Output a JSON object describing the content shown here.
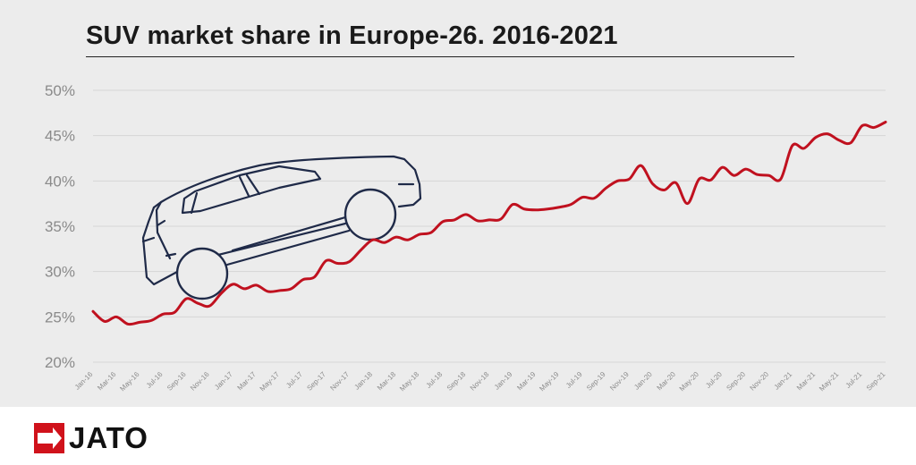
{
  "chart_data": {
    "type": "line",
    "title": "SUV market share in Europe-26. 2016-2021",
    "xlabel": "",
    "ylabel": "",
    "ylim": [
      20,
      50
    ],
    "yticks": [
      "50%",
      "45%",
      "40%",
      "35%",
      "30%",
      "25%",
      "20%"
    ],
    "x_tick_labels": [
      "Jan-16",
      "Mar-16",
      "May-16",
      "Jul-16",
      "Sep-16",
      "Nov-16",
      "Jan-17",
      "Mar-17",
      "May-17",
      "Jul-17",
      "Sep-17",
      "Nov-17",
      "Jan-18",
      "Mar-18",
      "May-18",
      "Jul-18",
      "Sep-18",
      "Nov-18",
      "Jan-19",
      "Mar-19",
      "May-19",
      "Jul-19",
      "Sep-19",
      "Nov-19",
      "Jan-20",
      "Mar-20",
      "May-20",
      "Jul-20",
      "Sep-20",
      "Nov-20",
      "Jan-21",
      "Mar-21",
      "May-21",
      "Jul-21",
      "Sep-21"
    ],
    "grid": true,
    "series": [
      {
        "color": "#c0111f",
        "x": [
          "Jan-16",
          "Feb-16",
          "Mar-16",
          "Apr-16",
          "May-16",
          "Jun-16",
          "Jul-16",
          "Aug-16",
          "Sep-16",
          "Oct-16",
          "Nov-16",
          "Dec-16",
          "Jan-17",
          "Feb-17",
          "Mar-17",
          "Apr-17",
          "May-17",
          "Jun-17",
          "Jul-17",
          "Aug-17",
          "Sep-17",
          "Oct-17",
          "Nov-17",
          "Dec-17",
          "Jan-18",
          "Feb-18",
          "Mar-18",
          "Apr-18",
          "May-18",
          "Jun-18",
          "Jul-18",
          "Aug-18",
          "Sep-18",
          "Oct-18",
          "Nov-18",
          "Dec-18",
          "Jan-19",
          "Feb-19",
          "Mar-19",
          "Apr-19",
          "May-19",
          "Jun-19",
          "Jul-19",
          "Aug-19",
          "Sep-19",
          "Oct-19",
          "Nov-19",
          "Dec-19",
          "Jan-20",
          "Feb-20",
          "Mar-20",
          "Apr-20",
          "May-20",
          "Jun-20",
          "Jul-20",
          "Aug-20",
          "Sep-20",
          "Oct-20",
          "Nov-20",
          "Dec-20",
          "Jan-21",
          "Feb-21",
          "Mar-21",
          "Apr-21",
          "May-21",
          "Jun-21",
          "Jul-21",
          "Aug-21",
          "Sep-21"
        ],
        "values": [
          25.6,
          24.5,
          25.0,
          24.2,
          24.4,
          24.6,
          25.3,
          25.5,
          27.0,
          26.5,
          26.2,
          27.6,
          28.6,
          28.1,
          28.5,
          27.8,
          27.9,
          28.1,
          29.1,
          29.4,
          31.2,
          30.9,
          31.1,
          32.4,
          33.5,
          33.2,
          33.8,
          33.5,
          34.1,
          34.3,
          35.5,
          35.7,
          36.3,
          35.6,
          35.7,
          35.8,
          37.4,
          36.9,
          36.8,
          36.9,
          37.1,
          37.4,
          38.2,
          38.1,
          39.2,
          40.0,
          40.2,
          41.7,
          39.7,
          39.0,
          39.8,
          37.5,
          40.2,
          40.1,
          41.5,
          40.6,
          41.3,
          40.7,
          40.6,
          40.2,
          43.9,
          43.6,
          44.8,
          45.2,
          44.5,
          44.2,
          46.1,
          45.9,
          46.5
        ]
      }
    ]
  },
  "brand": {
    "logo_text": "JATO",
    "logo_color": "#d0121b"
  },
  "colors": {
    "panel_bg": "#ececec",
    "grid": "#d6d6d6",
    "axis_text": "#8a8a8a",
    "car_outline": "#1f2a48"
  }
}
